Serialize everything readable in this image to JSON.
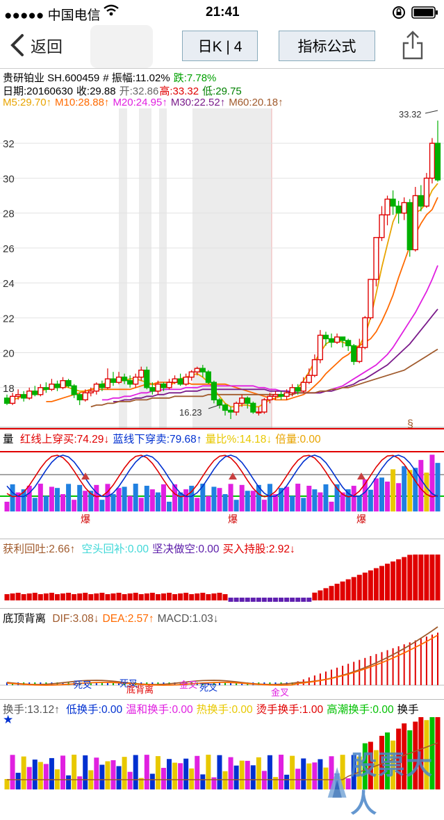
{
  "status_bar": {
    "carrier": "●●●●● 中国电信",
    "time": "21:41"
  },
  "nav": {
    "back_label": "返回",
    "period_label": "日K | 4",
    "indicator_label": "指标公式"
  },
  "stock_header": {
    "name_code": "贵研铂业 SH.600459",
    "amplitude": "# 振幅:11.02%",
    "change": "跌:7.78%",
    "date": "日期:20160630",
    "close": "收:29.88",
    "open": "开:32.86",
    "high": "高:33.32",
    "low": "低:29.75"
  },
  "ma": [
    {
      "label": "M5:29.70↑",
      "color": "#e8a400"
    },
    {
      "label": "M10:28.88↑",
      "color": "#ff6a00"
    },
    {
      "label": "M20:24.95↑",
      "color": "#e020e0"
    },
    {
      "label": "M30:22.52↑",
      "color": "#7a1a8a"
    },
    {
      "label": "M60:20.18↑",
      "color": "#a05a2c"
    }
  ],
  "price_axis": [
    "32",
    "30",
    "28",
    "26",
    "24",
    "22",
    "20",
    "18"
  ],
  "price_annotations": {
    "high": "33.32",
    "low": "16.23",
    "marker": "§"
  },
  "panel_volume": {
    "name": "量",
    "items": [
      {
        "label": "红线上穿买:74.29↓",
        "color": "#e00000"
      },
      {
        "label": "蓝线下穿卖:79.68↑",
        "color": "#0030d0"
      },
      {
        "label": "量比%:14.18↓",
        "color": "#e8c800"
      },
      {
        "label": "倍量:0.00",
        "color": "#e8a400"
      }
    ],
    "burst_label": "爆"
  },
  "panel_profit": {
    "name": "获利回吐:2.66↑",
    "items": [
      {
        "label": "空头回补:0.00",
        "color": "#40d8d8"
      },
      {
        "label": "坚决做空:0.00",
        "color": "#5a1aa8"
      },
      {
        "label": "买入持股:2.92↓",
        "color": "#e00000"
      }
    ]
  },
  "panel_macd": {
    "name": "底顶背离",
    "items": [
      {
        "label": "DIF:3.08↓",
        "color": "#a05a2c"
      },
      {
        "label": "DEA:2.57↑",
        "color": "#ff6a00"
      },
      {
        "label": "MACD:1.03↓",
        "color": "#555555"
      }
    ],
    "cross_labels": {
      "death": "死叉",
      "golden": "金叉",
      "bottom_div": "底背离"
    }
  },
  "panel_turnover": {
    "name": "换手:13.12↑",
    "items": [
      {
        "label": "低换手:0.00",
        "color": "#0030d0"
      },
      {
        "label": "温和换手:0.00",
        "color": "#e020e0"
      },
      {
        "label": "热换手:0.00",
        "color": "#e8c800"
      },
      {
        "label": "烫手换手:1.00",
        "color": "#e00000"
      },
      {
        "label": "高潮换手:0.00",
        "color": "#00c000"
      },
      {
        "label": "换手",
        "color": "#000000"
      }
    ]
  },
  "watermark": "股票大人",
  "chart_data": {
    "type": "candlestick",
    "ylim": [
      16,
      33.6
    ],
    "candles": [
      [
        17.4,
        17.1,
        17.6,
        17.0
      ],
      [
        17.1,
        17.5,
        17.7,
        17.0
      ],
      [
        17.5,
        17.6,
        17.9,
        17.3
      ],
      [
        17.6,
        17.4,
        17.8,
        17.2
      ],
      [
        17.4,
        17.8,
        18.0,
        17.3
      ],
      [
        17.8,
        17.6,
        18.1,
        17.5
      ],
      [
        17.6,
        18.0,
        18.2,
        17.5
      ],
      [
        18.0,
        17.9,
        18.3,
        17.7
      ],
      [
        17.9,
        18.2,
        18.5,
        17.8
      ],
      [
        18.2,
        18.0,
        18.4,
        17.8
      ],
      [
        18.0,
        18.4,
        18.6,
        17.9
      ],
      [
        18.4,
        18.1,
        18.5,
        18.0
      ],
      [
        18.1,
        17.6,
        18.2,
        17.4
      ],
      [
        17.6,
        17.3,
        17.7,
        17.0
      ],
      [
        17.3,
        17.7,
        17.9,
        17.2
      ],
      [
        17.7,
        17.8,
        18.0,
        17.5
      ],
      [
        17.8,
        18.2,
        18.3,
        17.6
      ],
      [
        18.2,
        18.0,
        18.4,
        17.8
      ],
      [
        18.0,
        18.5,
        19.1,
        17.9
      ],
      [
        18.5,
        18.3,
        18.9,
        18.1
      ],
      [
        18.3,
        18.6,
        18.9,
        18.2
      ],
      [
        18.6,
        18.4,
        18.8,
        18.2
      ],
      [
        18.4,
        18.2,
        18.7,
        18.0
      ],
      [
        18.2,
        18.6,
        18.8,
        18.0
      ],
      [
        18.6,
        19.0,
        19.2,
        18.4
      ],
      [
        19.0,
        18.0,
        19.2,
        17.9
      ],
      [
        18.0,
        17.8,
        18.3,
        17.6
      ],
      [
        17.8,
        18.2,
        18.4,
        17.6
      ],
      [
        18.2,
        18.0,
        18.3,
        17.8
      ],
      [
        18.0,
        18.3,
        18.5,
        17.9
      ],
      [
        18.3,
        18.5,
        18.7,
        18.2
      ],
      [
        18.5,
        18.2,
        18.8,
        18.1
      ],
      [
        18.2,
        18.6,
        18.8,
        18.1
      ],
      [
        18.6,
        18.9,
        19.0,
        18.4
      ],
      [
        18.9,
        19.1,
        19.2,
        18.7
      ],
      [
        19.1,
        18.9,
        19.3,
        18.6
      ],
      [
        18.9,
        18.3,
        19.0,
        18.2
      ],
      [
        18.3,
        17.3,
        18.4,
        17.1
      ],
      [
        17.3,
        17.0,
        17.4,
        16.8
      ],
      [
        17.0,
        16.7,
        17.1,
        16.4
      ],
      [
        16.7,
        16.6,
        16.9,
        16.2
      ],
      [
        16.6,
        17.1,
        17.2,
        16.4
      ],
      [
        17.1,
        17.4,
        17.6,
        16.9
      ],
      [
        17.4,
        17.1,
        17.5,
        16.8
      ],
      [
        17.1,
        16.6,
        17.2,
        16.5
      ],
      [
        16.6,
        16.6,
        16.9,
        16.4
      ],
      [
        16.6,
        17.3,
        17.4,
        16.5
      ],
      [
        17.3,
        17.5,
        17.7,
        17.1
      ],
      [
        17.5,
        17.6,
        17.8,
        17.3
      ],
      [
        17.6,
        17.5,
        17.8,
        17.3
      ],
      [
        17.5,
        17.7,
        17.9,
        17.3
      ],
      [
        17.7,
        18.0,
        18.2,
        17.5
      ],
      [
        18.0,
        17.8,
        18.2,
        17.6
      ],
      [
        17.8,
        18.3,
        18.6,
        17.7
      ],
      [
        18.3,
        18.7,
        19.1,
        18.2
      ],
      [
        18.7,
        19.6,
        19.9,
        18.6
      ],
      [
        19.6,
        21.0,
        21.3,
        19.4
      ],
      [
        21.0,
        20.8,
        21.2,
        20.4
      ],
      [
        20.8,
        20.6,
        21.1,
        20.3
      ],
      [
        20.6,
        20.9,
        21.1,
        20.5
      ],
      [
        20.9,
        20.7,
        20.9,
        20.3
      ],
      [
        20.7,
        20.4,
        20.8,
        20.1
      ],
      [
        20.4,
        19.5,
        20.5,
        19.3
      ],
      [
        19.5,
        20.3,
        20.8,
        19.4
      ],
      [
        20.3,
        22.0,
        22.1,
        20.2
      ],
      [
        22.0,
        24.2,
        24.2,
        21.9
      ],
      [
        24.2,
        26.6,
        26.6,
        23.8
      ],
      [
        26.6,
        27.9,
        28.4,
        26.4
      ],
      [
        27.9,
        28.8,
        29.0,
        27.3
      ],
      [
        28.8,
        28.4,
        29.3,
        27.9
      ],
      [
        28.4,
        28.0,
        28.7,
        27.4
      ],
      [
        28.0,
        28.6,
        28.9,
        27.6
      ],
      [
        28.6,
        25.9,
        28.8,
        25.5
      ],
      [
        25.9,
        29.0,
        29.5,
        25.8
      ],
      [
        29.0,
        28.4,
        29.6,
        28.1
      ],
      [
        28.4,
        30.0,
        30.3,
        28.3
      ],
      [
        30.0,
        32.0,
        32.3,
        29.7
      ],
      [
        32.0,
        29.9,
        33.3,
        29.8
      ]
    ],
    "ma_series": [
      {
        "name": "M5",
        "color": "#e8a400",
        "values": [
          17.3,
          17.4,
          17.5,
          17.6,
          17.7,
          17.8,
          17.9,
          18.0,
          18.0,
          18.1,
          18.0,
          17.9,
          17.8,
          17.8,
          17.9,
          18.0,
          18.2,
          18.3,
          18.4,
          18.4,
          18.4,
          18.5,
          18.5,
          18.4,
          18.3,
          18.2,
          18.1,
          18.0,
          18.1,
          18.3,
          18.5,
          18.6,
          18.7,
          18.8,
          18.6,
          18.3,
          17.9,
          17.5,
          17.1,
          16.9,
          16.9,
          17.0,
          17.0,
          16.9,
          16.9,
          17.1,
          17.3,
          17.4,
          17.5,
          17.6,
          17.8,
          18.0,
          18.4,
          18.9,
          19.5,
          20.0,
          20.5,
          20.7,
          20.7,
          20.6,
          20.5,
          20.3,
          20.4,
          21.0,
          22.0,
          23.4,
          24.9,
          26.2,
          27.5,
          28.2,
          28.2,
          27.8,
          28.0,
          28.2,
          28.6,
          29.3,
          29.7
        ]
      },
      {
        "name": "M10",
        "color": "#ff6a00",
        "values": [
          17.2,
          17.2,
          17.3,
          17.4,
          17.5,
          17.6,
          17.7,
          17.8,
          17.9,
          17.9,
          17.9,
          17.9,
          17.9,
          17.9,
          17.9,
          17.9,
          18.0,
          18.1,
          18.2,
          18.2,
          18.3,
          18.3,
          18.3,
          18.3,
          18.3,
          18.3,
          18.2,
          18.2,
          18.2,
          18.2,
          18.2,
          18.2,
          18.2,
          18.1,
          18.0,
          17.9,
          17.8,
          17.7,
          17.6,
          17.5,
          17.4,
          17.3,
          17.3,
          17.3,
          17.4,
          17.5,
          17.6,
          17.8,
          18.1,
          18.4,
          18.8,
          19.1,
          19.4,
          19.7,
          19.9,
          20.2,
          20.4,
          20.6,
          20.8,
          21.2,
          21.8,
          22.5,
          23.3,
          24.3,
          25.2,
          26.1,
          26.8,
          27.4,
          27.9,
          28.2,
          28.9
        ]
      },
      {
        "name": "M20",
        "color": "#e020e0",
        "values": [
          17.3,
          17.3,
          17.4,
          17.4,
          17.5,
          17.5,
          17.6,
          17.7,
          17.7,
          17.8,
          17.8,
          17.9,
          17.9,
          17.9,
          17.9,
          18.0,
          18.0,
          18.0,
          18.1,
          18.1,
          18.1,
          18.1,
          18.1,
          18.1,
          18.1,
          18.1,
          18.1,
          18.1,
          18.0,
          18.0,
          17.9,
          17.9,
          17.8,
          17.8,
          17.8,
          17.7,
          17.7,
          17.7,
          17.7,
          17.7,
          17.8,
          17.9,
          18.0,
          18.1,
          18.3,
          18.5,
          18.7,
          18.9,
          19.1,
          19.3,
          19.6,
          19.9,
          20.3,
          20.8,
          21.3,
          21.8,
          22.3,
          22.9,
          23.5,
          24.2,
          25.0
        ]
      },
      {
        "name": "M30",
        "color": "#7a1a8a",
        "values": [
          17.2,
          17.2,
          17.3,
          17.3,
          17.4,
          17.4,
          17.5,
          17.5,
          17.6,
          17.6,
          17.7,
          17.7,
          17.7,
          17.8,
          17.8,
          17.8,
          17.9,
          17.9,
          17.9,
          17.9,
          17.9,
          17.9,
          17.9,
          17.9,
          17.9,
          17.9,
          17.9,
          17.9,
          17.8,
          17.8,
          17.8,
          17.8,
          17.7,
          17.7,
          17.7,
          17.7,
          17.7,
          17.7,
          17.8,
          17.8,
          17.9,
          18.0,
          18.1,
          18.2,
          18.4,
          18.5,
          18.7,
          18.9,
          19.1,
          19.3,
          19.6,
          19.9,
          20.2,
          20.5,
          20.9,
          21.3,
          21.7,
          22.1,
          22.5
        ]
      },
      {
        "name": "M60",
        "color": "#a05a2c",
        "values": [
          16.9,
          17.0,
          17.0,
          17.1,
          17.1,
          17.2,
          17.2,
          17.2,
          17.3,
          17.3,
          17.3,
          17.4,
          17.4,
          17.4,
          17.4,
          17.5,
          17.5,
          17.5,
          17.5,
          17.5,
          17.5,
          17.6,
          17.6,
          17.6,
          17.6,
          17.6,
          17.6,
          17.6,
          17.6,
          17.6,
          17.6,
          17.6,
          17.6,
          17.6,
          17.6,
          17.6,
          17.6,
          17.7,
          17.7,
          17.7,
          17.7,
          17.8,
          17.8,
          17.9,
          17.9,
          18.0,
          18.0,
          18.1,
          18.2,
          18.3,
          18.4,
          18.5,
          18.6,
          18.7,
          18.8,
          18.9,
          19.0,
          19.2,
          19.4,
          19.6,
          19.8,
          20.0,
          20.2
        ]
      }
    ]
  }
}
